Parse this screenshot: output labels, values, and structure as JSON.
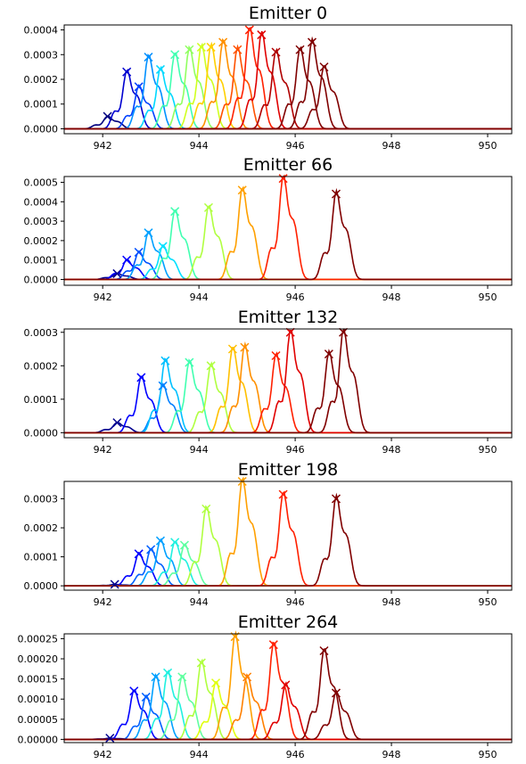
{
  "chart_data": [
    {
      "type": "line",
      "title": "Emitter 0",
      "xlim": [
        941.2,
        950.5
      ],
      "ylim": [
        -2e-05,
        0.00042
      ],
      "xticks": [
        "942",
        "944",
        "946",
        "948",
        "950"
      ],
      "yticks": [
        "0.0000",
        "0.0001",
        "0.0002",
        "0.0003",
        "0.0004"
      ],
      "yticks_values": [
        0,
        0.0001,
        0.0002,
        0.0003,
        0.0004
      ],
      "peaks": [
        {
          "x": 942.1,
          "y": 5e-05,
          "color": "#000080"
        },
        {
          "x": 942.5,
          "y": 0.00023,
          "color": "#0000d0"
        },
        {
          "x": 942.75,
          "y": 0.00017,
          "color": "#0040ff"
        },
        {
          "x": 942.95,
          "y": 0.00029,
          "color": "#0090ff"
        },
        {
          "x": 943.2,
          "y": 0.00024,
          "color": "#00d8ff"
        },
        {
          "x": 943.5,
          "y": 0.0003,
          "color": "#40ffb0"
        },
        {
          "x": 943.8,
          "y": 0.00032,
          "color": "#90ff60"
        },
        {
          "x": 944.05,
          "y": 0.00033,
          "color": "#d0ff20"
        },
        {
          "x": 944.25,
          "y": 0.00033,
          "color": "#ffd000"
        },
        {
          "x": 944.5,
          "y": 0.00035,
          "color": "#ff9000"
        },
        {
          "x": 944.8,
          "y": 0.00032,
          "color": "#ff5000"
        },
        {
          "x": 945.05,
          "y": 0.0004,
          "color": "#ff2000"
        },
        {
          "x": 945.3,
          "y": 0.00038,
          "color": "#e00000"
        },
        {
          "x": 945.6,
          "y": 0.00031,
          "color": "#b00000"
        },
        {
          "x": 946.1,
          "y": 0.00032,
          "color": "#800000"
        },
        {
          "x": 946.35,
          "y": 0.00035,
          "color": "#800000"
        },
        {
          "x": 946.6,
          "y": 0.00025,
          "color": "#800000"
        }
      ]
    },
    {
      "type": "line",
      "title": "Emitter 66",
      "xlim": [
        941.2,
        950.5
      ],
      "ylim": [
        -3e-05,
        0.00053
      ],
      "xticks": [
        "942",
        "944",
        "946",
        "948",
        "950"
      ],
      "yticks": [
        "0.0000",
        "0.0001",
        "0.0002",
        "0.0003",
        "0.0004",
        "0.0005"
      ],
      "yticks_values": [
        0,
        0.0001,
        0.0002,
        0.0003,
        0.0004,
        0.0005
      ],
      "peaks": [
        {
          "x": 942.3,
          "y": 3e-05,
          "color": "#000090"
        },
        {
          "x": 942.5,
          "y": 0.0001,
          "color": "#0000ff"
        },
        {
          "x": 942.75,
          "y": 0.00014,
          "color": "#0050ff"
        },
        {
          "x": 942.95,
          "y": 0.00024,
          "color": "#00a0ff"
        },
        {
          "x": 943.25,
          "y": 0.00017,
          "color": "#00e0ff"
        },
        {
          "x": 943.5,
          "y": 0.00035,
          "color": "#40ffb0"
        },
        {
          "x": 944.2,
          "y": 0.00037,
          "color": "#b0ff40"
        },
        {
          "x": 944.9,
          "y": 0.00046,
          "color": "#ffa000"
        },
        {
          "x": 945.75,
          "y": 0.00052,
          "color": "#ff2000"
        },
        {
          "x": 946.85,
          "y": 0.00044,
          "color": "#800000"
        }
      ]
    },
    {
      "type": "line",
      "title": "Emitter 132",
      "xlim": [
        941.2,
        950.5
      ],
      "ylim": [
        -1.5e-05,
        0.00031
      ],
      "xticks": [
        "942",
        "944",
        "946",
        "948",
        "950"
      ],
      "yticks": [
        "0.0000",
        "0.0001",
        "0.0002",
        "0.0003"
      ],
      "yticks_values": [
        0,
        0.0001,
        0.0002,
        0.0003
      ],
      "peaks": [
        {
          "x": 942.3,
          "y": 3e-05,
          "color": "#000090"
        },
        {
          "x": 942.8,
          "y": 0.000165,
          "color": "#0000ff"
        },
        {
          "x": 943.25,
          "y": 0.00014,
          "color": "#0080ff"
        },
        {
          "x": 943.3,
          "y": 0.000215,
          "color": "#00c0ff"
        },
        {
          "x": 943.8,
          "y": 0.00021,
          "color": "#40ffb0"
        },
        {
          "x": 944.25,
          "y": 0.0002,
          "color": "#b0ff40"
        },
        {
          "x": 944.7,
          "y": 0.00025,
          "color": "#ffc000"
        },
        {
          "x": 944.95,
          "y": 0.000255,
          "color": "#ff9000"
        },
        {
          "x": 945.6,
          "y": 0.00023,
          "color": "#ff2000"
        },
        {
          "x": 945.9,
          "y": 0.0003,
          "color": "#e00000"
        },
        {
          "x": 946.7,
          "y": 0.000235,
          "color": "#800000"
        },
        {
          "x": 947.0,
          "y": 0.0003,
          "color": "#800000"
        }
      ]
    },
    {
      "type": "line",
      "title": "Emitter 198",
      "xlim": [
        941.2,
        950.5
      ],
      "ylim": [
        -1.5e-05,
        0.00036
      ],
      "xticks": [
        "942",
        "944",
        "946",
        "948",
        "950"
      ],
      "yticks": [
        "0.0000",
        "0.0001",
        "0.0002",
        "0.0003"
      ],
      "yticks_values": [
        0,
        0.0001,
        0.0002,
        0.0003
      ],
      "peaks": [
        {
          "x": 942.25,
          "y": 5e-06,
          "color": "#000090"
        },
        {
          "x": 942.75,
          "y": 0.00011,
          "color": "#0000ff"
        },
        {
          "x": 943.0,
          "y": 0.000125,
          "color": "#0060ff"
        },
        {
          "x": 943.2,
          "y": 0.000155,
          "color": "#00a0ff"
        },
        {
          "x": 943.5,
          "y": 0.00015,
          "color": "#20f0e0"
        },
        {
          "x": 943.7,
          "y": 0.00014,
          "color": "#60ffa0"
        },
        {
          "x": 944.15,
          "y": 0.000265,
          "color": "#b0ff40"
        },
        {
          "x": 944.9,
          "y": 0.00036,
          "color": "#ffa000"
        },
        {
          "x": 945.75,
          "y": 0.000315,
          "color": "#ff2000"
        },
        {
          "x": 946.85,
          "y": 0.0003,
          "color": "#800000"
        }
      ]
    },
    {
      "type": "line",
      "title": "Emitter 264",
      "xlim": [
        941.2,
        950.5
      ],
      "ylim": [
        -8e-06,
        0.000262
      ],
      "xticks": [
        "942",
        "944",
        "946",
        "948",
        "950"
      ],
      "yticks": [
        "0.00000",
        "0.00005",
        "0.00010",
        "0.00015",
        "0.00020",
        "0.00025"
      ],
      "yticks_values": [
        0,
        5e-05,
        0.0001,
        0.00015,
        0.0002,
        0.00025
      ],
      "peaks": [
        {
          "x": 942.15,
          "y": 3e-06,
          "color": "#000090"
        },
        {
          "x": 942.65,
          "y": 0.00012,
          "color": "#0000ff"
        },
        {
          "x": 942.9,
          "y": 0.000105,
          "color": "#0060ff"
        },
        {
          "x": 943.1,
          "y": 0.000155,
          "color": "#00a0ff"
        },
        {
          "x": 943.35,
          "y": 0.000165,
          "color": "#20f0e0"
        },
        {
          "x": 943.65,
          "y": 0.000155,
          "color": "#60ffa0"
        },
        {
          "x": 944.05,
          "y": 0.00019,
          "color": "#b0ff40"
        },
        {
          "x": 944.35,
          "y": 0.00014,
          "color": "#e0ff10"
        },
        {
          "x": 944.75,
          "y": 0.000255,
          "color": "#ffa000"
        },
        {
          "x": 945.0,
          "y": 0.000155,
          "color": "#ff8000"
        },
        {
          "x": 945.55,
          "y": 0.000235,
          "color": "#ff2000"
        },
        {
          "x": 945.8,
          "y": 0.000135,
          "color": "#e00000"
        },
        {
          "x": 946.6,
          "y": 0.00022,
          "color": "#800000"
        },
        {
          "x": 946.85,
          "y": 0.000115,
          "color": "#800000"
        }
      ]
    }
  ]
}
